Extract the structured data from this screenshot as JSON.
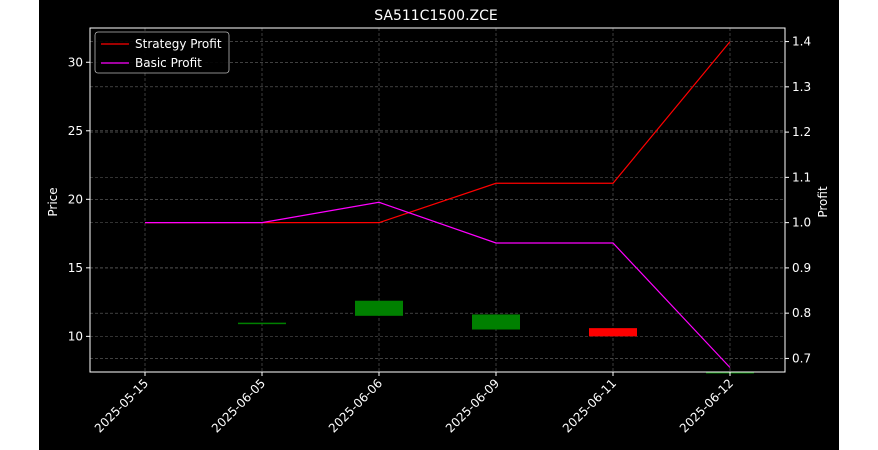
{
  "chart_data": {
    "type": "candlestick+line",
    "title": "SA511C1500.ZCE",
    "categories": [
      "2025-05-15",
      "2025-06-05",
      "2025-06-06",
      "2025-06-09",
      "2025-06-11",
      "2025-06-12"
    ],
    "price_axis": {
      "label": "Price",
      "ylim": [
        7.4,
        32.5
      ],
      "ticks": [
        10,
        15,
        20,
        25,
        30
      ]
    },
    "profit_axis": {
      "label": "Profit",
      "ylim": [
        0.67,
        1.43
      ],
      "ticks": [
        "0.7",
        "0.8",
        "0.9",
        "1.0",
        "1.1",
        "1.2",
        "1.3",
        "1.4"
      ]
    },
    "candles": [
      {
        "date": "2025-05-15",
        "open": null,
        "high": null,
        "low": null,
        "close": null
      },
      {
        "date": "2025-06-05",
        "open": 11.0,
        "high": 11.0,
        "low": 11.0,
        "close": 11.0
      },
      {
        "date": "2025-06-06",
        "open": 11.5,
        "high": 12.6,
        "low": 11.5,
        "close": 12.6
      },
      {
        "date": "2025-06-09",
        "open": 10.5,
        "high": 11.6,
        "low": 10.5,
        "close": 11.6
      },
      {
        "date": "2025-06-11",
        "open": 10.6,
        "high": 10.6,
        "low": 10.0,
        "close": 10.0
      },
      {
        "date": "2025-06-12",
        "open": 7.4,
        "high": 7.4,
        "low": 7.4,
        "close": 7.4
      }
    ],
    "series": [
      {
        "name": "Strategy Profit",
        "axis": "profit",
        "color": "#ff0000",
        "values": [
          1.0,
          1.0,
          1.0,
          1.087,
          1.087,
          1.4
        ]
      },
      {
        "name": "Basic Profit",
        "axis": "profit",
        "color": "#ff00ff",
        "values": [
          1.0,
          1.0,
          1.045,
          0.955,
          0.955,
          0.68
        ]
      }
    ],
    "legend": {
      "position": "top-left",
      "entries": [
        "Strategy Profit",
        "Basic Profit"
      ]
    },
    "grid": true,
    "colors": {
      "background": "#000000",
      "text": "#ffffff",
      "grid": "#666666",
      "up": "#008000",
      "down": "#ff0000"
    }
  }
}
